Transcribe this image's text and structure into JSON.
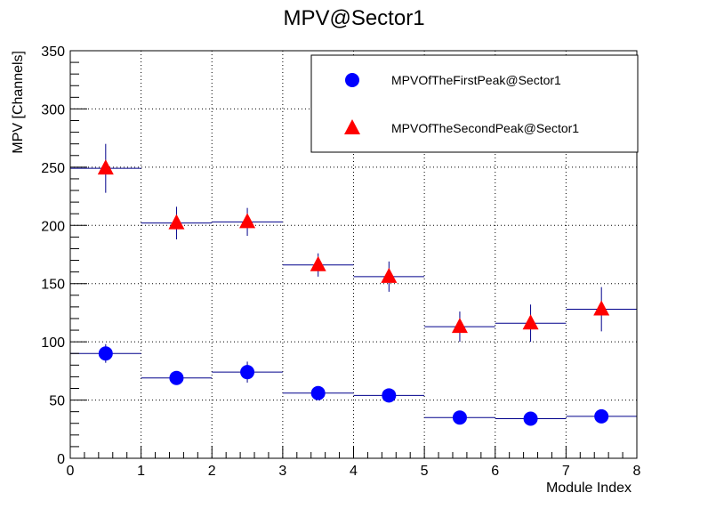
{
  "chart_data": {
    "type": "scatter",
    "title": "MPV@Sector1",
    "xlabel": "Module Index",
    "ylabel": "MPV [Channels]",
    "xlim": [
      0,
      8
    ],
    "ylim": [
      0,
      350
    ],
    "x_ticks": [
      "0",
      "1",
      "2",
      "3",
      "4",
      "5",
      "6",
      "7",
      "8"
    ],
    "y_ticks": [
      "0",
      "50",
      "100",
      "150",
      "200",
      "250",
      "300",
      "350"
    ],
    "grid": true,
    "legend_position": "top-right",
    "series": [
      {
        "name": "MPVOfTheFirstPeak@Sector1",
        "marker": "circle",
        "color": "#0000ff",
        "bin_color": "#00008b",
        "x": [
          0.5,
          1.5,
          2.5,
          3.5,
          4.5,
          5.5,
          6.5,
          7.5
        ],
        "y": [
          90,
          69,
          74,
          56,
          54,
          35,
          34,
          36
        ],
        "y_err": [
          8,
          4,
          9,
          4,
          6,
          3,
          3,
          4
        ]
      },
      {
        "name": "MPVOfTheSecondPeak@Sector1",
        "marker": "triangle",
        "color": "#ff0000",
        "bin_color": "#00008b",
        "x": [
          0.5,
          1.5,
          2.5,
          3.5,
          4.5,
          5.5,
          6.5,
          7.5
        ],
        "y": [
          249,
          202,
          203,
          166,
          156,
          113,
          116,
          128
        ],
        "y_err": [
          21,
          14,
          12,
          10,
          13,
          13,
          16,
          19
        ]
      }
    ]
  }
}
